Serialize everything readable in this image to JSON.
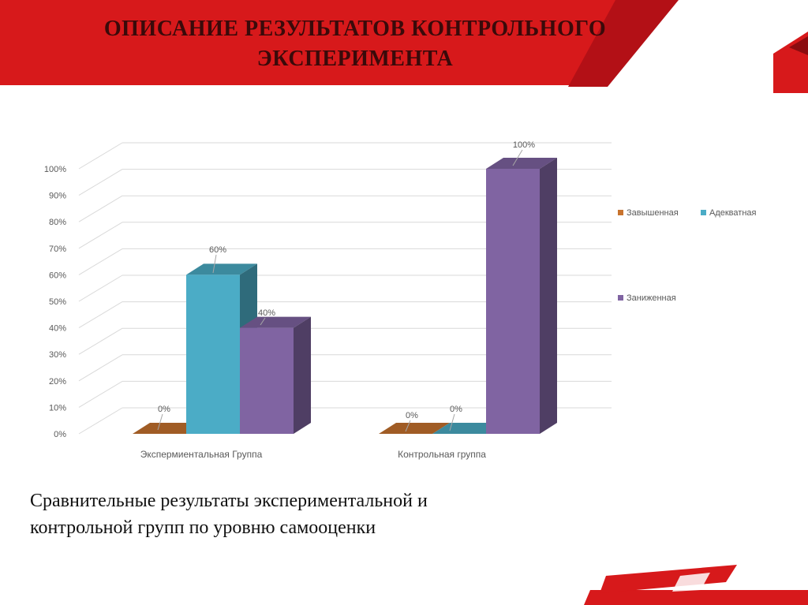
{
  "slide": {
    "title_line1": "ОПИСАНИЕ РЕЗУЛЬТАТОВ КОНТРОЛЬНОГО",
    "title_line2": "ЭКСПЕРИМЕНТА",
    "caption_line1": "Сравнительные результаты экспериментальной и",
    "caption_line2": "контрольной групп по уровню самооценки",
    "accent_color": "#d7191b"
  },
  "chart_data": {
    "type": "bar",
    "title": "",
    "categories": [
      "Экспермиентальная Группа",
      "Контрольная группа"
    ],
    "series": [
      {
        "name": "Завышенная",
        "values": [
          0,
          0
        ],
        "color": "#c8732e"
      },
      {
        "name": "Адекватная",
        "values": [
          60,
          0
        ],
        "color": "#4bacc6"
      },
      {
        "name": "Заниженная",
        "values": [
          40,
          100
        ],
        "color": "#8064a2"
      }
    ],
    "data_labels": [
      [
        "0%",
        "60%",
        "40%"
      ],
      [
        "0%",
        "0%",
        "100%"
      ]
    ],
    "y_ticks": [
      "0%",
      "10%",
      "20%",
      "30%",
      "40%",
      "50%",
      "60%",
      "70%",
      "80%",
      "90%",
      "100%"
    ],
    "ylim": [
      0,
      100
    ],
    "grid": true,
    "legend_position": "right",
    "style": "3d-clustered-column"
  }
}
